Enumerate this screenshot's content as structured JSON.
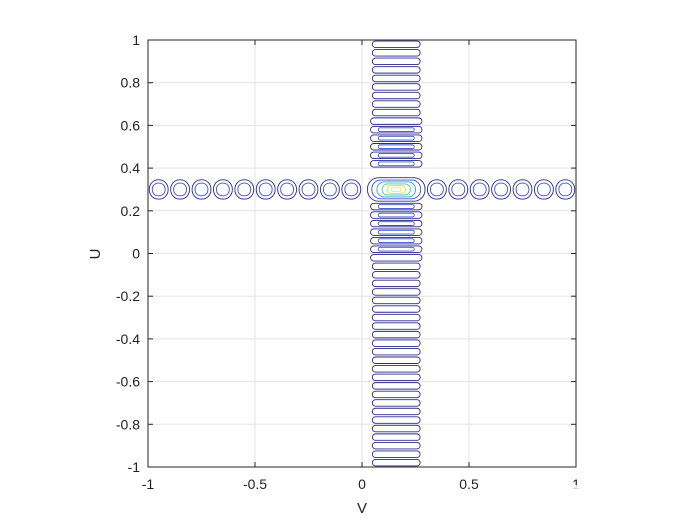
{
  "chart_data": {
    "type": "contour",
    "title": "",
    "xlabel": "V",
    "ylabel": "U",
    "xlim": [
      -1,
      1
    ],
    "ylim": [
      -1,
      1
    ],
    "xticks": [
      -1,
      -0.5,
      0,
      0.5,
      1
    ],
    "yticks": [
      -1,
      -0.8,
      -0.6,
      -0.4,
      -0.2,
      0,
      0.2,
      0.4,
      0.6,
      0.8,
      1
    ],
    "xtick_labels": [
      "-1",
      "-0.5",
      "0",
      "0.5",
      "1"
    ],
    "ytick_labels": [
      "-1",
      "-0.8",
      "-0.6",
      "-0.4",
      "-0.2",
      "0",
      "0.2",
      "0.4",
      "0.6",
      "0.8",
      "1"
    ],
    "grid": true,
    "colormap": "parula",
    "peak": {
      "x": 0.16,
      "y": 0.3
    },
    "vertical_arm": {
      "x_center": 0.16,
      "x_halfwidth": 0.12,
      "y_range": [
        -1,
        1
      ],
      "lobe_spacing": 0.04
    },
    "horizontal_arm": {
      "y_center": 0.3,
      "y_halfwidth": 0.05,
      "x_range": [
        -1,
        1
      ],
      "lobe_spacing": 0.1
    },
    "contour_colors": [
      "#2b2a8c",
      "#3a4fd6",
      "#27a7c7",
      "#62c58c",
      "#d4dd3f",
      "#f4ec30"
    ]
  }
}
